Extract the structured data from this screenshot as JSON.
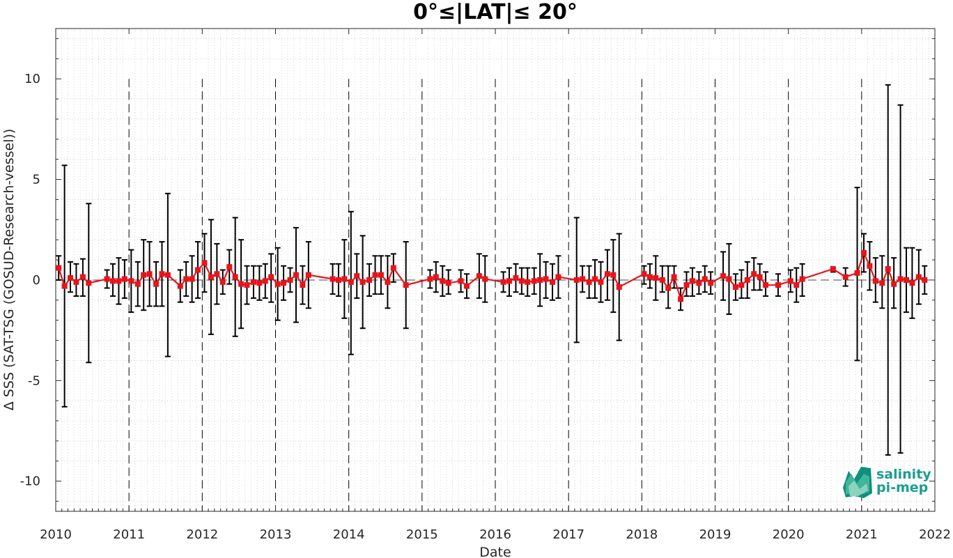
{
  "chart_data": {
    "type": "line",
    "title": "0°≤|LAT|≤ 20°",
    "xlabel": "Date",
    "ylabel": "Δ SSS (SAT-TSG (GOSUD-Research-vessel))",
    "xlim": [
      2010,
      2022
    ],
    "ylim": [
      -11.5,
      12.5
    ],
    "x_ticks": [
      "2010",
      "2011",
      "2012",
      "2013",
      "2014",
      "2015",
      "2016",
      "2017",
      "2018",
      "2019",
      "2020",
      "2021",
      "2022"
    ],
    "y_ticks": [
      {
        "value": 10,
        "label": "10"
      },
      {
        "value": 5,
        "label": "5"
      },
      {
        "value": 0,
        "label": "0"
      },
      {
        "value": -5,
        "label": "-5"
      },
      {
        "value": -10,
        "label": "-10"
      }
    ],
    "grid": "dotted",
    "year_lines": "dashed",
    "zero_line": "dashed",
    "line_color": "#e8141b",
    "errorbar_color": "#000000",
    "series": [
      {
        "points": [
          {
            "x": 2010.04,
            "y": 0.6,
            "lo": 0.0,
            "hi": 1.2
          },
          {
            "x": 2010.12,
            "y": -0.3,
            "lo": -6.3,
            "hi": 5.7
          },
          {
            "x": 2010.2,
            "y": 0.1,
            "lo": -0.6,
            "hi": 0.9
          },
          {
            "x": 2010.28,
            "y": -0.1,
            "lo": -0.8,
            "hi": 0.8
          },
          {
            "x": 2010.37,
            "y": 0.15,
            "lo": -0.8,
            "hi": 1.05
          },
          {
            "x": 2010.45,
            "y": -0.15,
            "lo": -4.1,
            "hi": 3.8
          },
          {
            "x": 2010.7,
            "y": 0.05,
            "lo": -0.4,
            "hi": 0.5
          },
          {
            "x": 2010.78,
            "y": -0.05,
            "lo": -0.8,
            "hi": 0.8
          },
          {
            "x": 2010.86,
            "y": -0.05,
            "lo": -1.2,
            "hi": 1.1
          },
          {
            "x": 2010.94,
            "y": 0.05,
            "lo": -0.9,
            "hi": 1.0
          },
          {
            "x": 2011.03,
            "y": -0.05,
            "lo": -1.6,
            "hi": 1.5
          },
          {
            "x": 2011.12,
            "y": -0.2,
            "lo": -1.3,
            "hi": 0.9
          },
          {
            "x": 2011.2,
            "y": 0.25,
            "lo": -1.5,
            "hi": 2.0
          },
          {
            "x": 2011.28,
            "y": 0.3,
            "lo": -1.3,
            "hi": 1.9
          },
          {
            "x": 2011.37,
            "y": -0.2,
            "lo": -1.3,
            "hi": 0.9
          },
          {
            "x": 2011.45,
            "y": 0.3,
            "lo": -1.3,
            "hi": 1.9
          },
          {
            "x": 2011.53,
            "y": 0.25,
            "lo": -3.8,
            "hi": 4.3
          },
          {
            "x": 2011.7,
            "y": -0.3,
            "lo": -1.1,
            "hi": 0.5
          },
          {
            "x": 2011.78,
            "y": 0.05,
            "lo": -0.8,
            "hi": 0.9
          },
          {
            "x": 2011.86,
            "y": 0.05,
            "lo": -1.1,
            "hi": 1.2
          },
          {
            "x": 2011.94,
            "y": 0.5,
            "lo": -0.9,
            "hi": 1.9
          },
          {
            "x": 2012.03,
            "y": 0.85,
            "lo": -0.6,
            "hi": 2.3
          },
          {
            "x": 2012.12,
            "y": 0.15,
            "lo": -2.7,
            "hi": 3.0
          },
          {
            "x": 2012.2,
            "y": 0.3,
            "lo": -1.2,
            "hi": 1.8
          },
          {
            "x": 2012.28,
            "y": -0.1,
            "lo": -0.7,
            "hi": 0.5
          },
          {
            "x": 2012.37,
            "y": 0.65,
            "lo": -0.2,
            "hi": 1.5
          },
          {
            "x": 2012.45,
            "y": 0.15,
            "lo": -2.8,
            "hi": 3.1
          },
          {
            "x": 2012.53,
            "y": -0.2,
            "lo": -2.4,
            "hi": 2.0
          },
          {
            "x": 2012.61,
            "y": -0.25,
            "lo": -1.2,
            "hi": 0.7
          },
          {
            "x": 2012.7,
            "y": -0.1,
            "lo": -0.9,
            "hi": 0.7
          },
          {
            "x": 2012.78,
            "y": -0.15,
            "lo": -1.0,
            "hi": 0.7
          },
          {
            "x": 2012.86,
            "y": -0.05,
            "lo": -0.9,
            "hi": 0.8
          },
          {
            "x": 2012.94,
            "y": 0.15,
            "lo": -1.1,
            "hi": 1.3
          },
          {
            "x": 2013.03,
            "y": -0.2,
            "lo": -2.0,
            "hi": 1.6
          },
          {
            "x": 2013.11,
            "y": -0.15,
            "lo": -1.0,
            "hi": 0.7
          },
          {
            "x": 2013.2,
            "y": 0.0,
            "lo": -0.6,
            "hi": 0.6
          },
          {
            "x": 2013.28,
            "y": 0.25,
            "lo": -2.1,
            "hi": 2.6
          },
          {
            "x": 2013.37,
            "y": -0.25,
            "lo": -1.2,
            "hi": 0.7
          },
          {
            "x": 2013.45,
            "y": 0.25,
            "lo": -1.4,
            "hi": 1.9
          },
          {
            "x": 2013.78,
            "y": 0.05,
            "lo": -0.7,
            "hi": 0.8
          },
          {
            "x": 2013.86,
            "y": 0.0,
            "lo": -0.8,
            "hi": 0.8
          },
          {
            "x": 2013.94,
            "y": 0.05,
            "lo": -1.9,
            "hi": 2.0
          },
          {
            "x": 2014.03,
            "y": -0.1,
            "lo": -3.7,
            "hi": 3.4
          },
          {
            "x": 2014.11,
            "y": 0.2,
            "lo": -0.9,
            "hi": 1.3
          },
          {
            "x": 2014.19,
            "y": -0.1,
            "lo": -2.4,
            "hi": 2.2
          },
          {
            "x": 2014.28,
            "y": 0.0,
            "lo": -0.8,
            "hi": 0.8
          },
          {
            "x": 2014.36,
            "y": 0.25,
            "lo": -0.7,
            "hi": 1.2
          },
          {
            "x": 2014.44,
            "y": 0.25,
            "lo": -0.7,
            "hi": 1.2
          },
          {
            "x": 2014.53,
            "y": -0.1,
            "lo": -1.4,
            "hi": 1.2
          },
          {
            "x": 2014.61,
            "y": 0.6,
            "lo": -0.1,
            "hi": 1.3
          },
          {
            "x": 2014.78,
            "y": -0.25,
            "lo": -2.4,
            "hi": 1.9
          },
          {
            "x": 2015.11,
            "y": 0.05,
            "lo": -0.4,
            "hi": 0.5
          },
          {
            "x": 2015.19,
            "y": 0.15,
            "lo": -0.6,
            "hi": 0.9
          },
          {
            "x": 2015.28,
            "y": -0.05,
            "lo": -0.8,
            "hi": 0.7
          },
          {
            "x": 2015.36,
            "y": -0.15,
            "lo": -0.7,
            "hi": 0.5
          },
          {
            "x": 2015.53,
            "y": -0.05,
            "lo": -0.6,
            "hi": 0.5
          },
          {
            "x": 2015.61,
            "y": -0.3,
            "lo": -0.9,
            "hi": 0.3
          },
          {
            "x": 2015.78,
            "y": 0.2,
            "lo": -0.9,
            "hi": 1.3
          },
          {
            "x": 2015.86,
            "y": 0.05,
            "lo": -1.1,
            "hi": 1.2
          },
          {
            "x": 2016.11,
            "y": -0.1,
            "lo": -0.6,
            "hi": 0.4
          },
          {
            "x": 2016.19,
            "y": -0.05,
            "lo": -0.8,
            "hi": 0.6
          },
          {
            "x": 2016.28,
            "y": 0.1,
            "lo": -0.6,
            "hi": 0.8
          },
          {
            "x": 2016.36,
            "y": -0.05,
            "lo": -0.7,
            "hi": 0.6
          },
          {
            "x": 2016.44,
            "y": -0.1,
            "lo": -0.8,
            "hi": 0.6
          },
          {
            "x": 2016.53,
            "y": -0.05,
            "lo": -0.7,
            "hi": 0.6
          },
          {
            "x": 2016.61,
            "y": 0.0,
            "lo": -1.3,
            "hi": 1.3
          },
          {
            "x": 2016.69,
            "y": 0.05,
            "lo": -0.9,
            "hi": 0.9
          },
          {
            "x": 2016.78,
            "y": -0.1,
            "lo": -1.0,
            "hi": 0.8
          },
          {
            "x": 2016.86,
            "y": 0.15,
            "lo": -0.9,
            "hi": 1.2
          },
          {
            "x": 2017.11,
            "y": 0.0,
            "lo": -3.1,
            "hi": 3.1
          },
          {
            "x": 2017.19,
            "y": 0.05,
            "lo": -0.6,
            "hi": 0.7
          },
          {
            "x": 2017.28,
            "y": -0.1,
            "lo": -0.9,
            "hi": 0.7
          },
          {
            "x": 2017.36,
            "y": 0.05,
            "lo": -0.9,
            "hi": 1.0
          },
          {
            "x": 2017.44,
            "y": -0.1,
            "lo": -1.1,
            "hi": 0.9
          },
          {
            "x": 2017.53,
            "y": 0.3,
            "lo": -1.0,
            "hi": 1.5
          },
          {
            "x": 2017.61,
            "y": 0.25,
            "lo": -1.6,
            "hi": 2.0
          },
          {
            "x": 2017.69,
            "y": -0.35,
            "lo": -3.0,
            "hi": 2.3
          },
          {
            "x": 2018.03,
            "y": 0.3,
            "lo": -0.2,
            "hi": 0.7
          },
          {
            "x": 2018.11,
            "y": 0.15,
            "lo": -0.4,
            "hi": 0.8
          },
          {
            "x": 2018.19,
            "y": 0.1,
            "lo": -1.0,
            "hi": 1.2
          },
          {
            "x": 2018.28,
            "y": 0.0,
            "lo": -0.6,
            "hi": 0.7
          },
          {
            "x": 2018.36,
            "y": -0.4,
            "lo": -1.4,
            "hi": 0.7
          },
          {
            "x": 2018.44,
            "y": 0.15,
            "lo": -0.4,
            "hi": 0.7
          },
          {
            "x": 2018.53,
            "y": -0.95,
            "lo": -1.5,
            "hi": -0.4
          },
          {
            "x": 2018.61,
            "y": -0.25,
            "lo": -0.8,
            "hi": 0.4
          },
          {
            "x": 2018.69,
            "y": -0.05,
            "lo": -0.8,
            "hi": 0.6
          },
          {
            "x": 2018.78,
            "y": -0.15,
            "lo": -0.7,
            "hi": 0.4
          },
          {
            "x": 2018.86,
            "y": 0.05,
            "lo": -0.6,
            "hi": 0.7
          },
          {
            "x": 2018.94,
            "y": -0.15,
            "lo": -0.7,
            "hi": 0.4
          },
          {
            "x": 2019.11,
            "y": 0.2,
            "lo": -1.0,
            "hi": 1.4
          },
          {
            "x": 2019.19,
            "y": 0.05,
            "lo": -1.7,
            "hi": 1.8
          },
          {
            "x": 2019.28,
            "y": -0.35,
            "lo": -1.0,
            "hi": 0.3
          },
          {
            "x": 2019.36,
            "y": -0.25,
            "lo": -0.9,
            "hi": 0.5
          },
          {
            "x": 2019.44,
            "y": 0.0,
            "lo": -0.9,
            "hi": 0.9
          },
          {
            "x": 2019.53,
            "y": 0.3,
            "lo": -0.5,
            "hi": 1.1
          },
          {
            "x": 2019.61,
            "y": 0.15,
            "lo": -0.5,
            "hi": 0.8
          },
          {
            "x": 2019.69,
            "y": -0.25,
            "lo": -0.8,
            "hi": 0.4
          },
          {
            "x": 2019.86,
            "y": -0.25,
            "lo": -0.8,
            "hi": 0.3
          },
          {
            "x": 2020.03,
            "y": -0.05,
            "lo": -0.6,
            "hi": 0.5
          },
          {
            "x": 2020.11,
            "y": -0.25,
            "lo": -1.1,
            "hi": 0.6
          },
          {
            "x": 2020.19,
            "y": 0.05,
            "lo": -0.8,
            "hi": 0.8
          },
          {
            "x": 2020.61,
            "y": 0.55,
            "lo": 0.4,
            "hi": 0.6
          },
          {
            "x": 2020.78,
            "y": 0.15,
            "lo": -0.3,
            "hi": 0.6
          },
          {
            "x": 2020.94,
            "y": 0.35,
            "lo": -4.0,
            "hi": 4.6
          },
          {
            "x": 2021.03,
            "y": 1.35,
            "lo": 0.4,
            "hi": 2.3
          },
          {
            "x": 2021.11,
            "y": 0.7,
            "lo": -0.5,
            "hi": 1.9
          },
          {
            "x": 2021.19,
            "y": -0.05,
            "lo": -1.1,
            "hi": 1.1
          },
          {
            "x": 2021.28,
            "y": -0.15,
            "lo": -1.4,
            "hi": 1.2
          },
          {
            "x": 2021.36,
            "y": 0.55,
            "lo": -8.7,
            "hi": 9.7
          },
          {
            "x": 2021.44,
            "y": -0.2,
            "lo": -1.4,
            "hi": 1.1
          },
          {
            "x": 2021.53,
            "y": 0.05,
            "lo": -8.6,
            "hi": 8.7
          },
          {
            "x": 2021.61,
            "y": 0.0,
            "lo": -1.6,
            "hi": 1.6
          },
          {
            "x": 2021.69,
            "y": -0.15,
            "lo": -1.9,
            "hi": 1.6
          },
          {
            "x": 2021.78,
            "y": 0.15,
            "lo": -1.2,
            "hi": 1.5
          },
          {
            "x": 2021.86,
            "y": 0.0,
            "lo": -0.7,
            "hi": 0.7
          }
        ]
      }
    ]
  },
  "logo": {
    "line1": "salinity",
    "line2": "pi-mep",
    "text_color": "#1a9e8f",
    "shape_colors": [
      "#0f8f7c",
      "#3fb59b",
      "#8ed2bd"
    ]
  }
}
